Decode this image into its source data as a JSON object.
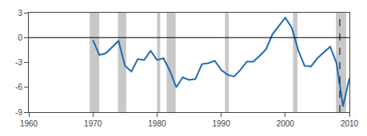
{
  "chart_data": {
    "type": "line",
    "x": [
      1970,
      1971,
      1972,
      1973,
      1974,
      1975,
      1976,
      1977,
      1978,
      1979,
      1980,
      1981,
      1982,
      1983,
      1984,
      1985,
      1986,
      1987,
      1988,
      1989,
      1990,
      1991,
      1992,
      1993,
      1994,
      1995,
      1996,
      1997,
      1998,
      1999,
      2000,
      2001,
      2002,
      2003,
      2004,
      2005,
      2006,
      2007,
      2008,
      2009,
      2010
    ],
    "values": [
      -0.3,
      -2.1,
      -1.9,
      -1.1,
      -0.4,
      -3.4,
      -4.1,
      -2.6,
      -2.7,
      -1.6,
      -2.7,
      -2.5,
      -4.0,
      -6.0,
      -4.8,
      -5.1,
      -5.0,
      -3.2,
      -3.1,
      -2.8,
      -3.9,
      -4.5,
      -4.7,
      -3.9,
      -2.9,
      -2.9,
      -2.2,
      -1.4,
      0.4,
      1.4,
      2.4,
      1.2,
      -1.5,
      -3.4,
      -3.5,
      -2.5,
      -1.8,
      -1.1,
      -3.1,
      -8.3,
      -4.9
    ],
    "color": "#1F6BB5",
    "recession_bands": {
      "ranges": [
        [
          1969.5,
          1971.0
        ],
        [
          1973.9,
          1975.2
        ],
        [
          1980.0,
          1980.5
        ],
        [
          1981.5,
          1982.9
        ],
        [
          1990.6,
          1991.2
        ],
        [
          2001.2,
          2001.9
        ],
        [
          2007.9,
          2009.5
        ]
      ],
      "color": "#C8C8C8"
    },
    "hline": {
      "y": 0,
      "color": "black"
    },
    "vline": {
      "x": 2008.5,
      "color": "black",
      "line_style": "dashed"
    },
    "xlim": [
      1960,
      2010
    ],
    "xticks": [
      1960,
      1970,
      1980,
      1990,
      2000,
      2010
    ],
    "ylim": [
      -9,
      3
    ],
    "yticks": [
      -9,
      -6,
      -3,
      0,
      3
    ],
    "grid": false
  }
}
